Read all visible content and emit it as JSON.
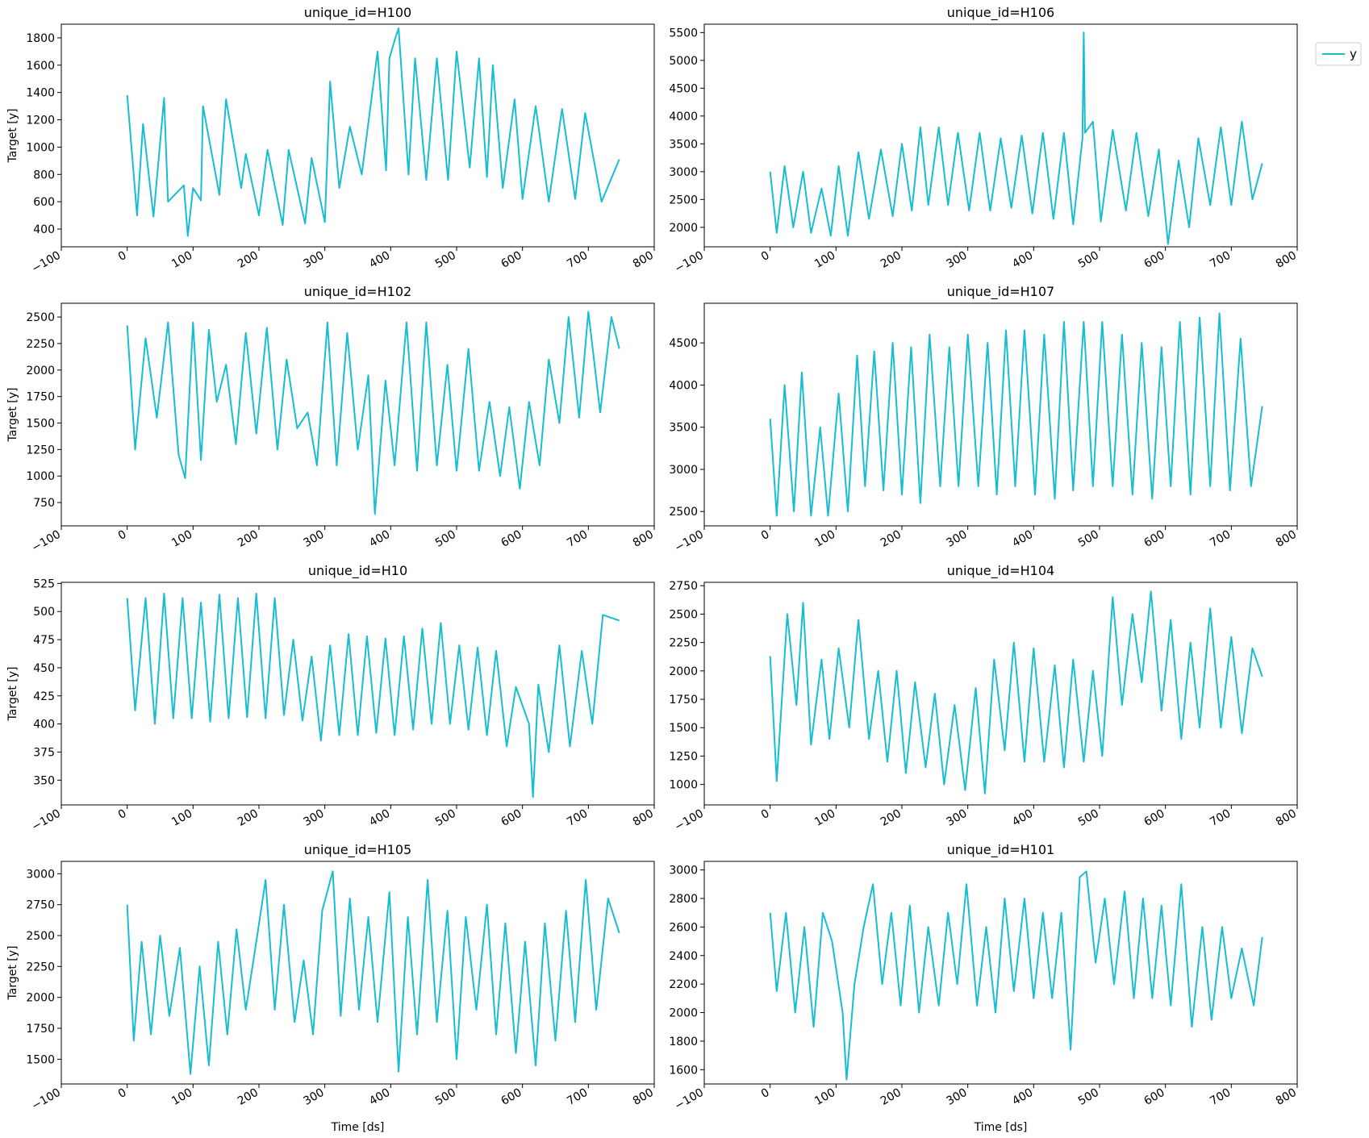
{
  "figure": {
    "legend": {
      "label": "y",
      "placement": "upper-right-outside",
      "color": "#17becf"
    },
    "line_color": "#17becf",
    "x_axis_label": "Time [ds]",
    "y_axis_label": "Target [y]"
  },
  "chart_data": [
    {
      "type": "line",
      "title": "unique_id=H100",
      "ylabel": "Target [y]",
      "xlabel": "",
      "xlim": [
        -100,
        800
      ],
      "ylim": [
        270,
        1900
      ],
      "x_ticks": [
        -100,
        0,
        100,
        200,
        300,
        400,
        500,
        600,
        700,
        800
      ],
      "y_ticks": [
        400,
        600,
        800,
        1000,
        1200,
        1400,
        1600,
        1800
      ],
      "series": [
        {
          "name": "y",
          "x": [
            0,
            15,
            24,
            40,
            56,
            62,
            86,
            92,
            100,
            112,
            115,
            140,
            150,
            173,
            180,
            200,
            213,
            236,
            245,
            270,
            280,
            300,
            308,
            322,
            338,
            356,
            380,
            393,
            398,
            407,
            412,
            427,
            437,
            454,
            470,
            487,
            500,
            520,
            534,
            546,
            555,
            570,
            588,
            600,
            620,
            640,
            660,
            680,
            695,
            720,
            747
          ],
          "y": [
            1380,
            500,
            1170,
            490,
            1360,
            600,
            720,
            350,
            700,
            610,
            1300,
            650,
            1350,
            700,
            950,
            500,
            980,
            430,
            980,
            440,
            920,
            450,
            1480,
            700,
            1150,
            800,
            1700,
            830,
            1650,
            1800,
            1870,
            800,
            1650,
            760,
            1650,
            760,
            1700,
            850,
            1650,
            780,
            1600,
            700,
            1350,
            620,
            1300,
            600,
            1280,
            620,
            1250,
            600,
            910
          ]
        }
      ],
      "grid": false
    },
    {
      "type": "line",
      "title": "unique_id=H106",
      "ylabel": "",
      "xlabel": "",
      "xlim": [
        -100,
        800
      ],
      "ylim": [
        1650,
        5650
      ],
      "x_ticks": [
        -100,
        0,
        100,
        200,
        300,
        400,
        500,
        600,
        700,
        800
      ],
      "y_ticks": [
        2000,
        2500,
        3000,
        3500,
        4000,
        4500,
        5000,
        5500
      ],
      "series": [
        {
          "name": "y",
          "x": [
            0,
            10,
            22,
            35,
            50,
            62,
            78,
            92,
            104,
            118,
            134,
            150,
            168,
            186,
            200,
            215,
            228,
            240,
            256,
            270,
            285,
            302,
            318,
            334,
            350,
            366,
            382,
            398,
            414,
            430,
            446,
            460,
            474,
            476,
            478,
            490,
            502,
            520,
            540,
            556,
            574,
            590,
            604,
            620,
            636,
            650,
            668,
            684,
            700,
            716,
            732,
            747
          ],
          "y": [
            3000,
            1900,
            3100,
            2000,
            3000,
            1900,
            2700,
            1850,
            3100,
            1850,
            3350,
            2150,
            3400,
            2200,
            3500,
            2300,
            3800,
            2400,
            3800,
            2400,
            3700,
            2300,
            3700,
            2300,
            3600,
            2350,
            3650,
            2250,
            3700,
            2150,
            3700,
            2050,
            3600,
            5500,
            3700,
            3900,
            2100,
            3750,
            2300,
            3700,
            2200,
            3400,
            1700,
            3200,
            2000,
            3600,
            2400,
            3800,
            2400,
            3900,
            2500,
            3150
          ]
        }
      ],
      "grid": false
    },
    {
      "type": "line",
      "title": "unique_id=H102",
      "ylabel": "Target [y]",
      "xlabel": "",
      "xlim": [
        -100,
        800
      ],
      "ylim": [
        530,
        2630
      ],
      "x_ticks": [
        -100,
        0,
        100,
        200,
        300,
        400,
        500,
        600,
        700,
        800
      ],
      "y_ticks": [
        750,
        1000,
        1250,
        1500,
        1750,
        2000,
        2250,
        2500
      ],
      "series": [
        {
          "name": "y",
          "x": [
            0,
            12,
            28,
            45,
            62,
            78,
            88,
            100,
            112,
            124,
            136,
            150,
            165,
            180,
            196,
            212,
            228,
            242,
            258,
            274,
            288,
            304,
            318,
            334,
            350,
            366,
            376,
            392,
            406,
            424,
            440,
            454,
            470,
            486,
            500,
            518,
            534,
            550,
            566,
            580,
            596,
            610,
            626,
            640,
            656,
            670,
            686,
            700,
            718,
            735,
            747
          ],
          "y": [
            2420,
            1250,
            2300,
            1550,
            2450,
            1200,
            980,
            2450,
            1150,
            2380,
            1700,
            2050,
            1300,
            2350,
            1400,
            2400,
            1250,
            2100,
            1450,
            1600,
            1100,
            2450,
            1100,
            2350,
            1250,
            1950,
            640,
            1900,
            1100,
            2450,
            1050,
            2450,
            1100,
            2050,
            1050,
            2200,
            1050,
            1700,
            1000,
            1650,
            880,
            1700,
            1100,
            2100,
            1500,
            2500,
            1550,
            2550,
            1600,
            2500,
            2200
          ]
        }
      ],
      "grid": false
    },
    {
      "type": "line",
      "title": "unique_id=H107",
      "ylabel": "",
      "xlabel": "",
      "xlim": [
        -100,
        800
      ],
      "ylim": [
        2330,
        4970
      ],
      "x_ticks": [
        -100,
        0,
        100,
        200,
        300,
        400,
        500,
        600,
        700,
        800
      ],
      "y_ticks": [
        2500,
        3000,
        3500,
        4000,
        4500
      ],
      "series": [
        {
          "name": "y",
          "x": [
            0,
            10,
            22,
            36,
            48,
            62,
            76,
            88,
            104,
            118,
            132,
            144,
            158,
            172,
            186,
            200,
            214,
            228,
            242,
            258,
            272,
            286,
            300,
            316,
            330,
            344,
            358,
            372,
            386,
            402,
            416,
            432,
            446,
            460,
            476,
            490,
            504,
            520,
            534,
            550,
            564,
            580,
            594,
            608,
            622,
            638,
            652,
            668,
            682,
            698,
            714,
            730,
            747
          ],
          "y": [
            3600,
            2450,
            4000,
            2500,
            4150,
            2450,
            3500,
            2450,
            3900,
            2500,
            4350,
            2800,
            4400,
            2750,
            4500,
            2700,
            4450,
            2600,
            4600,
            2800,
            4450,
            2800,
            4600,
            2800,
            4500,
            2700,
            4650,
            2800,
            4650,
            2700,
            4600,
            2650,
            4750,
            2750,
            4750,
            2800,
            4750,
            2800,
            4600,
            2700,
            4500,
            2650,
            4450,
            2800,
            4750,
            2700,
            4800,
            2800,
            4850,
            2750,
            4550,
            2800,
            3750
          ]
        }
      ],
      "grid": false
    },
    {
      "type": "line",
      "title": "unique_id=H10",
      "ylabel": "Target [y]",
      "xlabel": "",
      "xlim": [
        -100,
        800
      ],
      "ylim": [
        328,
        526
      ],
      "x_ticks": [
        -100,
        0,
        100,
        200,
        300,
        400,
        500,
        600,
        700,
        800
      ],
      "y_ticks": [
        350,
        375,
        400,
        425,
        450,
        475,
        500,
        525
      ],
      "series": [
        {
          "name": "y",
          "x": [
            0,
            12,
            28,
            42,
            56,
            70,
            84,
            98,
            112,
            126,
            140,
            154,
            168,
            182,
            196,
            210,
            224,
            238,
            252,
            266,
            280,
            294,
            308,
            322,
            336,
            350,
            364,
            378,
            392,
            406,
            420,
            434,
            448,
            462,
            476,
            490,
            504,
            518,
            532,
            546,
            560,
            576,
            590,
            610,
            616,
            624,
            640,
            656,
            672,
            690,
            706,
            722,
            747
          ],
          "y": [
            512,
            412,
            512,
            400,
            516,
            405,
            512,
            405,
            508,
            402,
            515,
            405,
            512,
            406,
            516,
            405,
            512,
            408,
            475,
            403,
            460,
            385,
            470,
            390,
            480,
            390,
            478,
            392,
            476,
            390,
            478,
            395,
            485,
            400,
            490,
            400,
            470,
            395,
            468,
            390,
            465,
            380,
            433,
            400,
            335,
            435,
            375,
            470,
            380,
            465,
            400,
            497,
            492
          ]
        }
      ],
      "grid": false
    },
    {
      "type": "line",
      "title": "unique_id=H104",
      "ylabel": "",
      "xlabel": "",
      "xlim": [
        -100,
        800
      ],
      "ylim": [
        820,
        2780
      ],
      "x_ticks": [
        -100,
        0,
        100,
        200,
        300,
        400,
        500,
        600,
        700,
        800
      ],
      "y_ticks": [
        1000,
        1250,
        1500,
        1750,
        2000,
        2250,
        2500,
        2750
      ],
      "series": [
        {
          "name": "y",
          "x": [
            0,
            10,
            26,
            40,
            50,
            62,
            78,
            90,
            104,
            120,
            134,
            150,
            164,
            178,
            192,
            206,
            220,
            236,
            250,
            264,
            280,
            296,
            312,
            326,
            340,
            356,
            370,
            386,
            400,
            416,
            432,
            446,
            460,
            476,
            490,
            504,
            520,
            534,
            550,
            564,
            578,
            594,
            608,
            624,
            638,
            652,
            668,
            684,
            700,
            716,
            732,
            747
          ],
          "y": [
            2130,
            1030,
            2500,
            1700,
            2600,
            1350,
            2100,
            1400,
            2200,
            1500,
            2450,
            1400,
            2000,
            1200,
            2000,
            1100,
            1900,
            1150,
            1800,
            1000,
            1700,
            950,
            1850,
            920,
            2100,
            1300,
            2250,
            1200,
            2200,
            1200,
            2050,
            1150,
            2100,
            1200,
            2000,
            1250,
            2650,
            1700,
            2500,
            1900,
            2700,
            1650,
            2450,
            1400,
            2250,
            1500,
            2550,
            1500,
            2300,
            1450,
            2200,
            1950
          ]
        }
      ],
      "grid": false
    },
    {
      "type": "line",
      "title": "unique_id=H105",
      "ylabel": "Target [y]",
      "xlabel": "Time [ds]",
      "xlim": [
        -100,
        800
      ],
      "ylim": [
        1300,
        3100
      ],
      "x_ticks": [
        -100,
        0,
        100,
        200,
        300,
        400,
        500,
        600,
        700,
        800
      ],
      "y_ticks": [
        1500,
        1750,
        2000,
        2250,
        2500,
        2750,
        3000
      ],
      "series": [
        {
          "name": "y",
          "x": [
            0,
            10,
            22,
            36,
            50,
            64,
            80,
            96,
            110,
            124,
            138,
            152,
            166,
            180,
            196,
            210,
            224,
            238,
            254,
            268,
            282,
            296,
            312,
            324,
            338,
            352,
            366,
            380,
            398,
            412,
            426,
            440,
            456,
            470,
            486,
            500,
            514,
            530,
            546,
            560,
            574,
            590,
            604,
            620,
            634,
            650,
            666,
            680,
            696,
            712,
            730,
            747
          ],
          "y": [
            2750,
            1650,
            2450,
            1700,
            2500,
            1850,
            2400,
            1380,
            2250,
            1450,
            2450,
            1700,
            2550,
            1900,
            2450,
            2950,
            1900,
            2750,
            1800,
            2300,
            1700,
            2700,
            3020,
            1850,
            2800,
            1900,
            2650,
            1800,
            2850,
            1400,
            2650,
            1700,
            2950,
            1800,
            2700,
            1500,
            2650,
            1900,
            2750,
            1700,
            2600,
            1550,
            2450,
            1450,
            2600,
            1650,
            2700,
            1800,
            2950,
            1900,
            2800,
            2520
          ]
        }
      ],
      "grid": false
    },
    {
      "type": "line",
      "title": "unique_id=H101",
      "ylabel": "",
      "xlabel": "Time [ds]",
      "xlim": [
        -100,
        800
      ],
      "ylim": [
        1500,
        3060
      ],
      "x_ticks": [
        -100,
        0,
        100,
        200,
        300,
        400,
        500,
        600,
        700,
        800
      ],
      "y_ticks": [
        1600,
        1800,
        2000,
        2200,
        2400,
        2600,
        2800,
        3000
      ],
      "series": [
        {
          "name": "y",
          "x": [
            0,
            10,
            24,
            38,
            52,
            66,
            80,
            94,
            110,
            116,
            128,
            142,
            156,
            170,
            184,
            198,
            212,
            226,
            240,
            256,
            270,
            284,
            298,
            314,
            328,
            342,
            356,
            370,
            386,
            400,
            414,
            428,
            442,
            456,
            470,
            480,
            494,
            508,
            522,
            538,
            552,
            566,
            580,
            594,
            608,
            624,
            640,
            656,
            670,
            686,
            700,
            716,
            734,
            747
          ],
          "y": [
            2700,
            2150,
            2700,
            2000,
            2600,
            1900,
            2700,
            2500,
            2000,
            1530,
            2200,
            2600,
            2900,
            2200,
            2700,
            2050,
            2750,
            2000,
            2600,
            2050,
            2700,
            2200,
            2900,
            2050,
            2600,
            2000,
            2800,
            2150,
            2800,
            2100,
            2700,
            2100,
            2700,
            1740,
            2950,
            2990,
            2350,
            2800,
            2200,
            2850,
            2100,
            2800,
            2100,
            2750,
            2050,
            2900,
            1900,
            2600,
            1950,
            2600,
            2100,
            2450,
            2050,
            2530
          ]
        }
      ],
      "grid": false
    }
  ]
}
